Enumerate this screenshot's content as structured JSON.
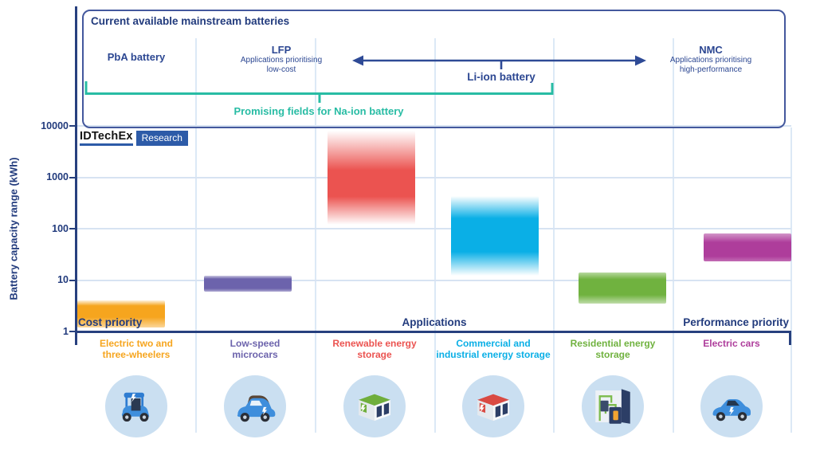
{
  "header_box": {
    "title": "Current available mainstream batteries",
    "pba_label": "PbA battery",
    "lfp_name": "LFP",
    "lfp_sub1": "Applications prioritising",
    "lfp_sub2": "low-cost",
    "liion_label": "Li-ion battery",
    "nmc_name": "NMC",
    "nmc_sub1": "Applications prioritising",
    "nmc_sub2": "high-performance",
    "naion_label": "Promising fields for Na-ion battery"
  },
  "logo": {
    "brand": "IDTechEx",
    "tag": "Research"
  },
  "axis_groups": {
    "left": "Cost priority",
    "center": "Applications",
    "right": "Performance priority"
  },
  "colors": {
    "navy_text": "#223B7D",
    "navy_line": "#2E4A96",
    "teal": "#28BCA4",
    "gridline": "#D7E3F2",
    "column_divider": "#DCE9F6",
    "icon_circle_bg": "#CADFF1",
    "logo_blue": "#2D5BA8"
  },
  "chart_data": {
    "type": "bar",
    "subtype": "floating-range-bars",
    "title": "Current available mainstream batteries",
    "ylabel": "Battery capacity range (kWh)",
    "y_scale": "log10",
    "ylim": [
      1,
      20000
    ],
    "yticks": [
      1,
      10,
      100,
      1000,
      10000
    ],
    "grid": true,
    "series": [
      {
        "category": "Electric two and three-wheelers",
        "label_lines": [
          "Electric two and",
          "three-wheelers"
        ],
        "min_kwh": 1.2,
        "max_kwh": 4,
        "color": "#F6A51E",
        "icon": "three-wheeler-icon",
        "battery_group": "PbA battery / LFP",
        "priority": "Cost priority"
      },
      {
        "category": "Low-speed microcars",
        "label_lines": [
          "Low-speed",
          "microcars"
        ],
        "min_kwh": 6,
        "max_kwh": 12,
        "color": "#6C63AC",
        "icon": "microcar-icon",
        "battery_group": "LFP",
        "priority": ""
      },
      {
        "category": "Renewable energy storage",
        "label_lines": [
          "Renewable energy",
          "storage"
        ],
        "min_kwh": 120,
        "max_kwh": 8000,
        "color": "#EB5350",
        "icon": "renewable-storage-icon",
        "battery_group": "LFP / Li-ion",
        "priority": ""
      },
      {
        "category": "Commercial and industrial energy storage",
        "label_lines": [
          "Commercial and",
          "industrial energy storage"
        ],
        "min_kwh": 12,
        "max_kwh": 430,
        "color": "#0AAFE6",
        "icon": "industrial-storage-icon",
        "battery_group": "Li-ion",
        "priority": ""
      },
      {
        "category": "Residential energy storage",
        "label_lines": [
          "Residential energy",
          "storage"
        ],
        "min_kwh": 3.5,
        "max_kwh": 14,
        "color": "#70B23F",
        "icon": "home-battery-icon",
        "battery_group": "Li-ion",
        "priority": ""
      },
      {
        "category": "Electric cars",
        "label_lines": [
          "Electric cars"
        ],
        "min_kwh": 23,
        "max_kwh": 80,
        "color": "#AE3D9B",
        "icon": "electric-car-icon",
        "battery_group": "NMC",
        "priority": "Performance priority"
      }
    ]
  }
}
